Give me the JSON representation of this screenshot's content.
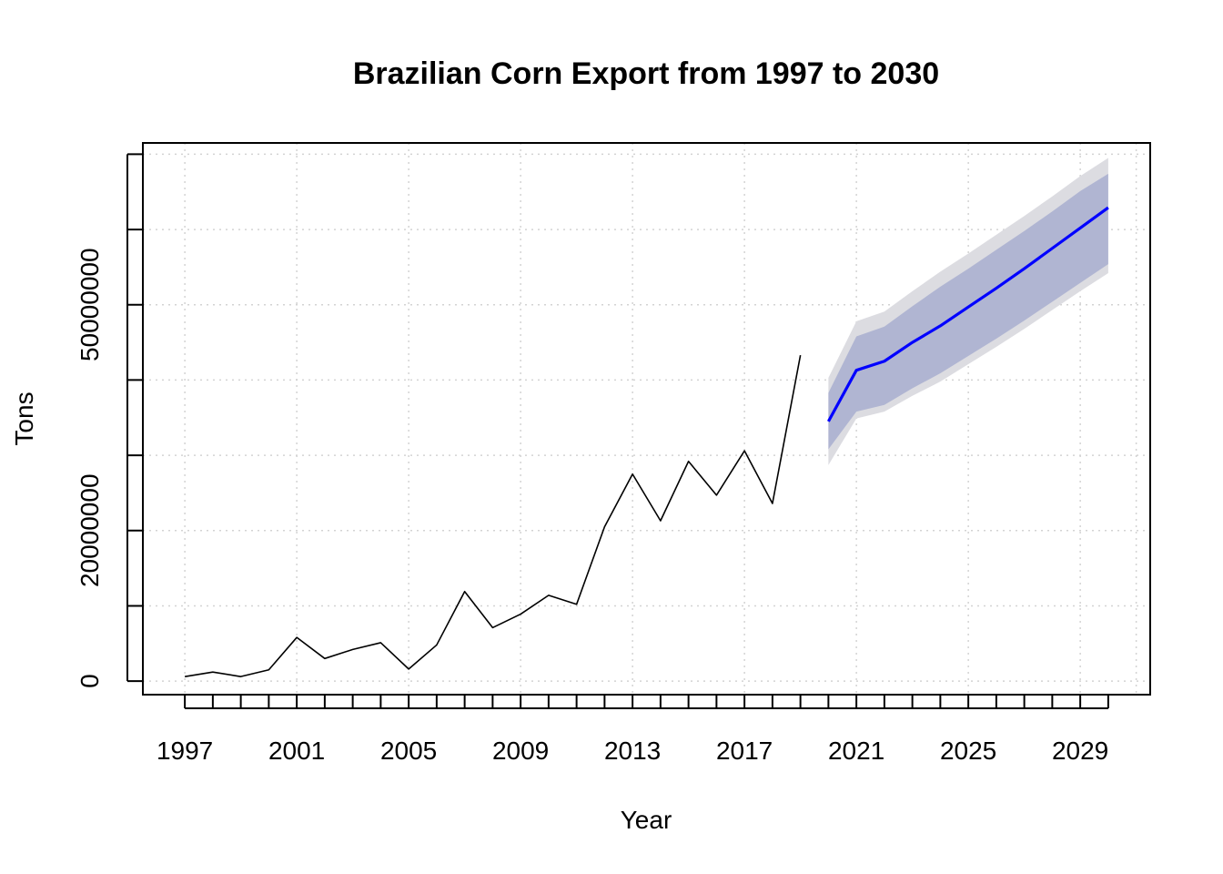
{
  "chart_data": {
    "type": "line",
    "title": "Brazilian Corn Export from 1997 to 2030",
    "xlabel": "Year",
    "ylabel": "Tons",
    "x_tick_labels": [
      "1997",
      "2001",
      "2005",
      "2009",
      "2013",
      "2017",
      "2021",
      "2025",
      "2029"
    ],
    "y_tick_labels": [
      "0",
      "20000000",
      "50000000"
    ],
    "y_ticks": [
      0,
      10000000,
      20000000,
      30000000,
      40000000,
      50000000,
      60000000,
      70000000
    ],
    "y_labeled_ticks": [
      0,
      20000000,
      50000000
    ],
    "xlim": [
      1995.5,
      2031.5
    ],
    "ylim": [
      -1800000,
      71500000
    ],
    "grid": true,
    "series": [
      {
        "x": [
          1997,
          1998,
          1999,
          2000,
          2001,
          2002,
          2003,
          2004,
          2005,
          2006,
          2007,
          2008,
          2009,
          2010,
          2011,
          2012,
          2013,
          2014,
          2015,
          2016,
          2017,
          2018,
          2019
        ],
        "values": [
          600000,
          1200000,
          600000,
          1500000,
          5800000,
          3000000,
          4200000,
          5100000,
          1600000,
          4800000,
          11900000,
          7100000,
          8900000,
          11400000,
          10200000,
          20500000,
          27500000,
          21300000,
          29200000,
          24700000,
          30600000,
          23600000,
          43300000
        ],
        "color": "#000000"
      },
      {
        "x": [
          2020,
          2021,
          2022,
          2023,
          2024,
          2025,
          2026,
          2027,
          2028,
          2029,
          2030
        ],
        "values": [
          34500000,
          41300000,
          42500000,
          45000000,
          47200000,
          49700000,
          52200000,
          54800000,
          57500000,
          60200000,
          62900000
        ],
        "color": "#0000ff"
      }
    ],
    "intervals": [
      {
        "x": [
          2020,
          2021,
          2022,
          2023,
          2024,
          2025,
          2026,
          2027,
          2028,
          2029,
          2030
        ],
        "lower": [
          30800000,
          35800000,
          36700000,
          38900000,
          40900000,
          43200000,
          45500000,
          47900000,
          50400000,
          52900000,
          55400000
        ],
        "upper": [
          38300000,
          45800000,
          47100000,
          49800000,
          52400000,
          54800000,
          57300000,
          59800000,
          62400000,
          65100000,
          67400000
        ],
        "color": "#b0b5d2"
      },
      {
        "x": [
          2020,
          2021,
          2022,
          2023,
          2024,
          2025,
          2026,
          2027,
          2028,
          2029,
          2030
        ],
        "lower": [
          28700000,
          34900000,
          35800000,
          37900000,
          39800000,
          42100000,
          44400000,
          46800000,
          49300000,
          51800000,
          54200000
        ],
        "upper": [
          40300000,
          47800000,
          49100000,
          51800000,
          54400000,
          56800000,
          59300000,
          61800000,
          64400000,
          67100000,
          69500000
        ],
        "color": "#dcdce1"
      }
    ]
  }
}
